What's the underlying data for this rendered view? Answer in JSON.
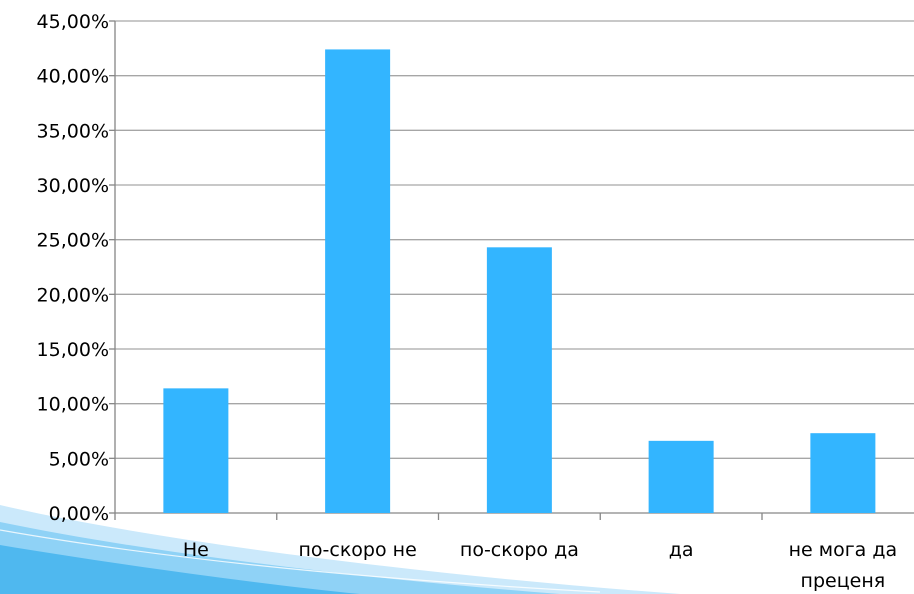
{
  "chart_data": {
    "type": "bar",
    "title": "",
    "xlabel": "",
    "ylabel": "",
    "categories": [
      "Не",
      "по-скоро не",
      "по-скоро да",
      "да",
      "не мога да преценя"
    ],
    "category_label_lines": [
      [
        "Не"
      ],
      [
        "по-скоро не"
      ],
      [
        "по-скоро да"
      ],
      [
        "да"
      ],
      [
        "не мога да",
        "преценя"
      ]
    ],
    "values": [
      11.4,
      42.4,
      24.3,
      6.6,
      7.3
    ],
    "ylim": [
      0,
      45
    ],
    "yticks": [
      0,
      5,
      10,
      15,
      20,
      25,
      30,
      35,
      40,
      45
    ],
    "ytick_labels": [
      "0,00%",
      "5,00%",
      "10,00%",
      "15,00%",
      "20,00%",
      "25,00%",
      "30,00%",
      "35,00%",
      "40,00%",
      "45,00%"
    ],
    "grid": true,
    "legend": "none",
    "colors": {
      "bar": "#33b5ff",
      "grid": "#a6a6a6",
      "axis": "#868686",
      "text": "#000000",
      "decor_light": "#cbe9fb",
      "decor_mid": "#8fd2f6",
      "decor_dark": "#4fb8ef"
    }
  }
}
